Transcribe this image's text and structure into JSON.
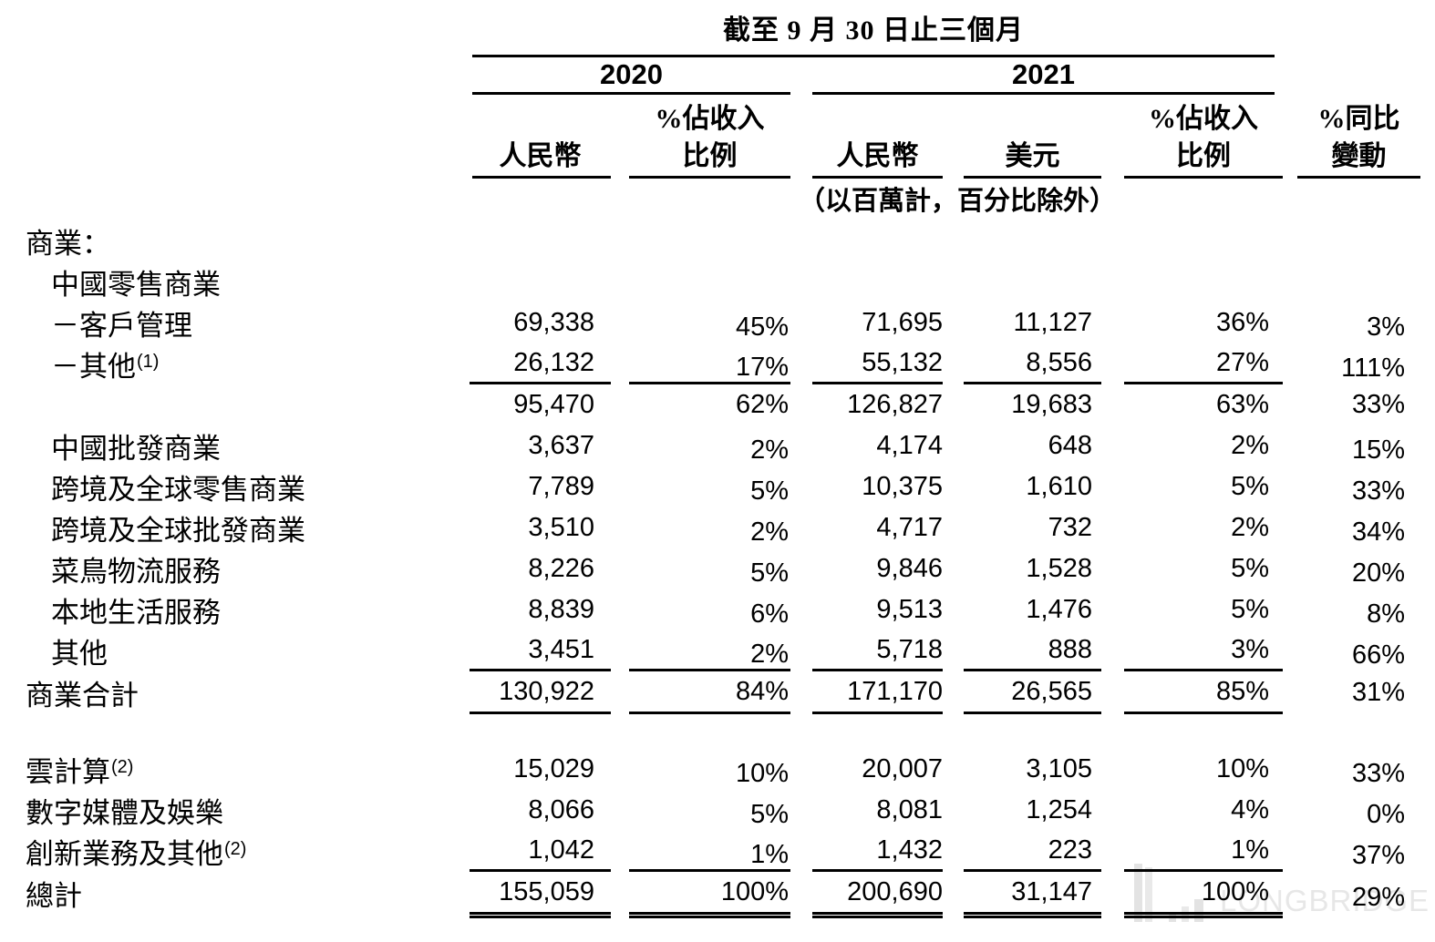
{
  "header": {
    "period_title": "截至 9 月 30 日止三個月",
    "col_group_2020": "2020",
    "col_group_2021": "2021",
    "columns": {
      "rmb_2020": "人民幣",
      "pct_rev_2020_l1": "%佔收入",
      "pct_rev_2020_l2": "比例",
      "rmb_2021": "人民幣",
      "usd_2021": "美元",
      "pct_rev_2021_l1": "%佔收入",
      "pct_rev_2021_l2": "比例",
      "yoy_l1": "%同比",
      "yoy_l2": "變動"
    },
    "unit_note": "（以百萬計，百分比除外）"
  },
  "table": {
    "rows": [
      {
        "label": "商業：",
        "indent": 0,
        "values": null
      },
      {
        "label": "中國零售商業",
        "indent": 1,
        "values": null
      },
      {
        "label": "－客戶管理",
        "indent": 1,
        "values": [
          "69,338",
          "45%",
          "71,695",
          "11,127",
          "36%",
          "3%"
        ],
        "pct_low": true
      },
      {
        "label": "－其他",
        "footnote": "(1)",
        "indent": 1,
        "values": [
          "26,132",
          "17%",
          "55,132",
          "8,556",
          "27%",
          "111%"
        ],
        "pct_low": true,
        "underline": true
      },
      {
        "label": "",
        "indent": 1,
        "values": [
          "95,470",
          "62%",
          "126,827",
          "19,683",
          "63%",
          "33%"
        ]
      },
      {
        "label": "中國批發商業",
        "indent": 1,
        "values": [
          "3,637",
          "2%",
          "4,174",
          "648",
          "2%",
          "15%"
        ],
        "pct_low": true
      },
      {
        "label": "跨境及全球零售商業",
        "indent": 1,
        "values": [
          "7,789",
          "5%",
          "10,375",
          "1,610",
          "5%",
          "33%"
        ],
        "pct_low": true
      },
      {
        "label": "跨境及全球批發商業",
        "indent": 1,
        "values": [
          "3,510",
          "2%",
          "4,717",
          "732",
          "2%",
          "34%"
        ],
        "pct_low": true
      },
      {
        "label": "菜鳥物流服務",
        "indent": 1,
        "values": [
          "8,226",
          "5%",
          "9,846",
          "1,528",
          "5%",
          "20%"
        ],
        "pct_low": true
      },
      {
        "label": "本地生活服務",
        "indent": 1,
        "values": [
          "8,839",
          "6%",
          "9,513",
          "1,476",
          "5%",
          "8%"
        ],
        "pct_low": true
      },
      {
        "label": "其他",
        "indent": 1,
        "values": [
          "3,451",
          "2%",
          "5,718",
          "888",
          "3%",
          "66%"
        ],
        "pct_low": true,
        "underline": true
      },
      {
        "label": "商業合計",
        "indent": 0,
        "values": [
          "130,922",
          "84%",
          "171,170",
          "26,565",
          "85%",
          "31%"
        ],
        "underline": true,
        "tall": true
      },
      {
        "label": "雲計算",
        "footnote": "(2)",
        "indent": 0,
        "values": [
          "15,029",
          "10%",
          "20,007",
          "3,105",
          "10%",
          "33%"
        ],
        "pct_low": true,
        "gap_above": true
      },
      {
        "label": "數字媒體及娛樂",
        "indent": 0,
        "values": [
          "8,066",
          "5%",
          "8,081",
          "1,254",
          "4%",
          "0%"
        ],
        "pct_low": true
      },
      {
        "label": "創新業務及其他",
        "footnote": "(2)",
        "indent": 0,
        "values": [
          "1,042",
          "1%",
          "1,432",
          "223",
          "1%",
          "37%"
        ],
        "pct_low": true,
        "underline": true
      },
      {
        "label": "總計",
        "indent": 0,
        "values": [
          "155,059",
          "100%",
          "200,690",
          "31,147",
          "100%",
          "29%"
        ],
        "pct_low": "yoy",
        "double_underline": true,
        "tall": true
      }
    ]
  },
  "watermark": {
    "brand": "LONGBRIDGE"
  }
}
